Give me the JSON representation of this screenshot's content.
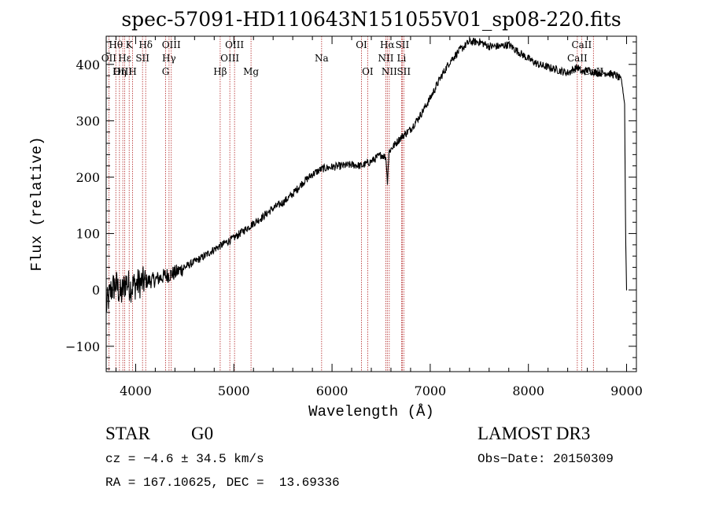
{
  "chart_data": {
    "type": "line",
    "title": "spec-57091-HD110643N151055V01_sp08-220.fits",
    "xlabel": "Wavelength (Å)",
    "ylabel": "Flux (relative)",
    "xlim": [
      3700,
      9100
    ],
    "ylim": [
      -145,
      450
    ],
    "xticks": [
      {
        "value": 4000,
        "label": "4000"
      },
      {
        "value": 5000,
        "label": "5000"
      },
      {
        "value": 6000,
        "label": "6000"
      },
      {
        "value": 7000,
        "label": "7000"
      },
      {
        "value": 8000,
        "label": "8000"
      },
      {
        "value": 9000,
        "label": "9000"
      }
    ],
    "yticks": [
      {
        "value": -100,
        "label": "−100"
      },
      {
        "value": 0,
        "label": "0"
      },
      {
        "value": 100,
        "label": "100"
      },
      {
        "value": 200,
        "label": "200"
      },
      {
        "value": 300,
        "label": "300"
      },
      {
        "value": 400,
        "label": "400"
      }
    ],
    "series": [
      {
        "name": "spectrum",
        "x": [
          3700,
          3750,
          3800,
          3850,
          3900,
          3950,
          4000,
          4100,
          4200,
          4300,
          4400,
          4500,
          4600,
          4700,
          4800,
          4900,
          5000,
          5100,
          5200,
          5300,
          5400,
          5500,
          5600,
          5700,
          5800,
          5900,
          6000,
          6100,
          6200,
          6300,
          6400,
          6500,
          6550,
          6563,
          6580,
          6600,
          6700,
          6800,
          6900,
          7000,
          7100,
          7200,
          7300,
          7400,
          7500,
          7600,
          7700,
          7800,
          7900,
          8000,
          8100,
          8200,
          8300,
          8400,
          8500,
          8550,
          8600,
          8700,
          8800,
          8900,
          8950,
          8980,
          8990,
          9000
        ],
        "y": [
          -30,
          0,
          10,
          -10,
          15,
          5,
          10,
          15,
          18,
          25,
          30,
          40,
          50,
          60,
          72,
          82,
          92,
          105,
          118,
          130,
          145,
          155,
          170,
          190,
          205,
          215,
          218,
          220,
          222,
          220,
          228,
          240,
          235,
          190,
          245,
          250,
          270,
          285,
          310,
          340,
          375,
          405,
          425,
          440,
          440,
          432,
          432,
          435,
          422,
          410,
          400,
          395,
          390,
          385,
          395,
          385,
          390,
          385,
          385,
          380,
          370,
          330,
          100,
          0
        ]
      }
    ],
    "line_marks": [
      {
        "label": "Hθ",
        "x": 3798,
        "row": 0
      },
      {
        "label": "OII",
        "x": 3727,
        "row": 1
      },
      {
        "label": "OIII",
        "x": 3869,
        "row": 2
      },
      {
        "label": "K",
        "x": 3934,
        "row": 0
      },
      {
        "label": "Hε",
        "x": 3889,
        "row": 1
      },
      {
        "label": "Hη",
        "x": 3835,
        "row": 2
      },
      {
        "label": "Hδ",
        "x": 4102,
        "row": 0
      },
      {
        "label": "SII",
        "x": 4070,
        "row": 1
      },
      {
        "label": "H",
        "x": 3969,
        "row": 2
      },
      {
        "label": "OIII",
        "x": 4363,
        "row": 0
      },
      {
        "label": "Hγ",
        "x": 4340,
        "row": 1
      },
      {
        "label": "G",
        "x": 4305,
        "row": 2
      },
      {
        "label": "OIII",
        "x": 5007,
        "row": 0
      },
      {
        "label": "OIII",
        "x": 4959,
        "row": 1
      },
      {
        "label": "Hβ",
        "x": 4861,
        "row": 2
      },
      {
        "label": "Mg",
        "x": 5175,
        "row": 2
      },
      {
        "label": "Na",
        "x": 5894,
        "row": 1
      },
      {
        "label": "OI",
        "x": 6300,
        "row": 0
      },
      {
        "label": "OI",
        "x": 6363,
        "row": 2
      },
      {
        "label": "Hα",
        "x": 6563,
        "row": 0
      },
      {
        "label": "SII",
        "x": 6716,
        "row": 0
      },
      {
        "label": "NII",
        "x": 6548,
        "row": 1
      },
      {
        "label": "Li",
        "x": 6708,
        "row": 1
      },
      {
        "label": "NII",
        "x": 6583,
        "row": 2
      },
      {
        "label": "SII",
        "x": 6731,
        "row": 2
      },
      {
        "label": "CaII",
        "x": 8542,
        "row": 0
      },
      {
        "label": "CaII",
        "x": 8498,
        "row": 1
      },
      {
        "label": "CaII",
        "x": 8662,
        "row": 2
      }
    ]
  },
  "footer": {
    "object_class": "STAR",
    "subclass": "G0",
    "survey": "LAMOST DR3",
    "velocity": "cz = −4.6 ± 34.5 km/s",
    "obs_date": "Obs−Date: 20150309",
    "coords": "RA = 167.10625, DEC =  13.69336"
  },
  "colors": {
    "spectrum": "#000000",
    "line_marks": "#b22222",
    "axes": "#000000"
  }
}
